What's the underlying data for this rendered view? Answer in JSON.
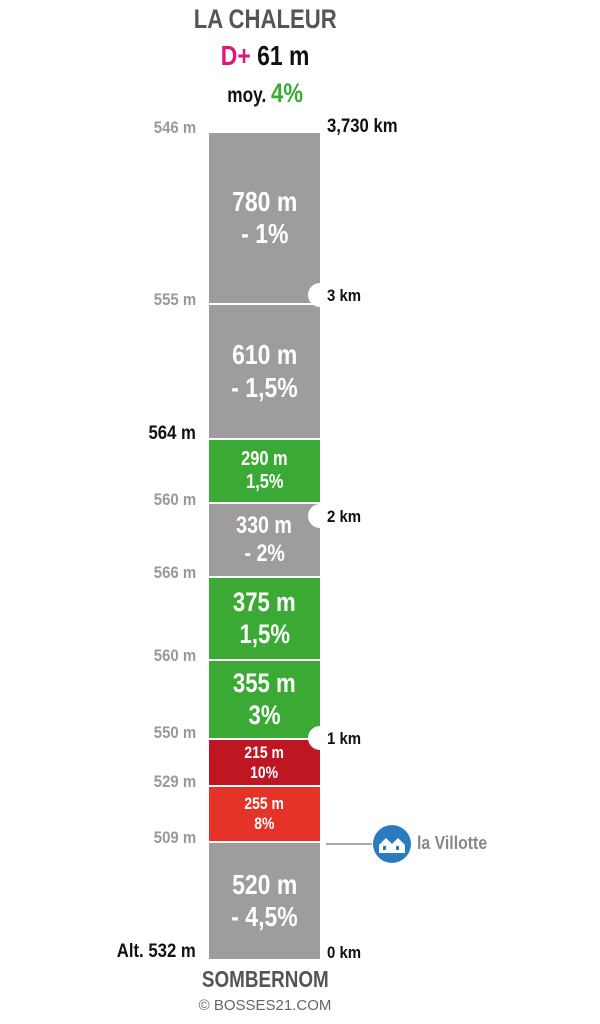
{
  "header": {
    "title": "LA CHALEUR",
    "dplus_label": "D+",
    "dplus_value": "61 m",
    "avg_label": "moy.",
    "avg_value": "4%"
  },
  "colors": {
    "gray": "#9e9c9c",
    "green": "#3aaa35",
    "dark_red": "#be1622",
    "red": "#e5332a",
    "dplus": "#e0157a",
    "poi": "#2b7cbf"
  },
  "segments": [
    {
      "length": "780 m",
      "grade": "- 1%",
      "color": "gray"
    },
    {
      "length": "610 m",
      "grade": "- 1,5%",
      "color": "gray"
    },
    {
      "length": "290 m",
      "grade": "1,5%",
      "color": "green"
    },
    {
      "length": "330 m",
      "grade": "- 2%",
      "color": "gray"
    },
    {
      "length": "375 m",
      "grade": "1,5%",
      "color": "green"
    },
    {
      "length": "355 m",
      "grade": "3%",
      "color": "green"
    },
    {
      "length": "215 m",
      "grade": "10%",
      "color": "dark_red"
    },
    {
      "length": "255 m",
      "grade": "8%",
      "color": "red"
    },
    {
      "length": "520 m",
      "grade": "- 4,5%",
      "color": "gray"
    }
  ],
  "altitudes": [
    "546 m",
    "555 m",
    "564 m",
    "560 m",
    "566 m",
    "560 m",
    "550 m",
    "529 m",
    "509 m",
    "Alt. 532 m"
  ],
  "km_markers": {
    "top": "3,730 km",
    "km3": "3 km",
    "km2": "2 km",
    "km1": "1 km",
    "km0": "0 km"
  },
  "poi": {
    "label": "la Villotte",
    "icon": "houses-icon"
  },
  "footer": {
    "start_name": "SOMBERNOM",
    "copyright": "© BOSSES21.COM"
  }
}
